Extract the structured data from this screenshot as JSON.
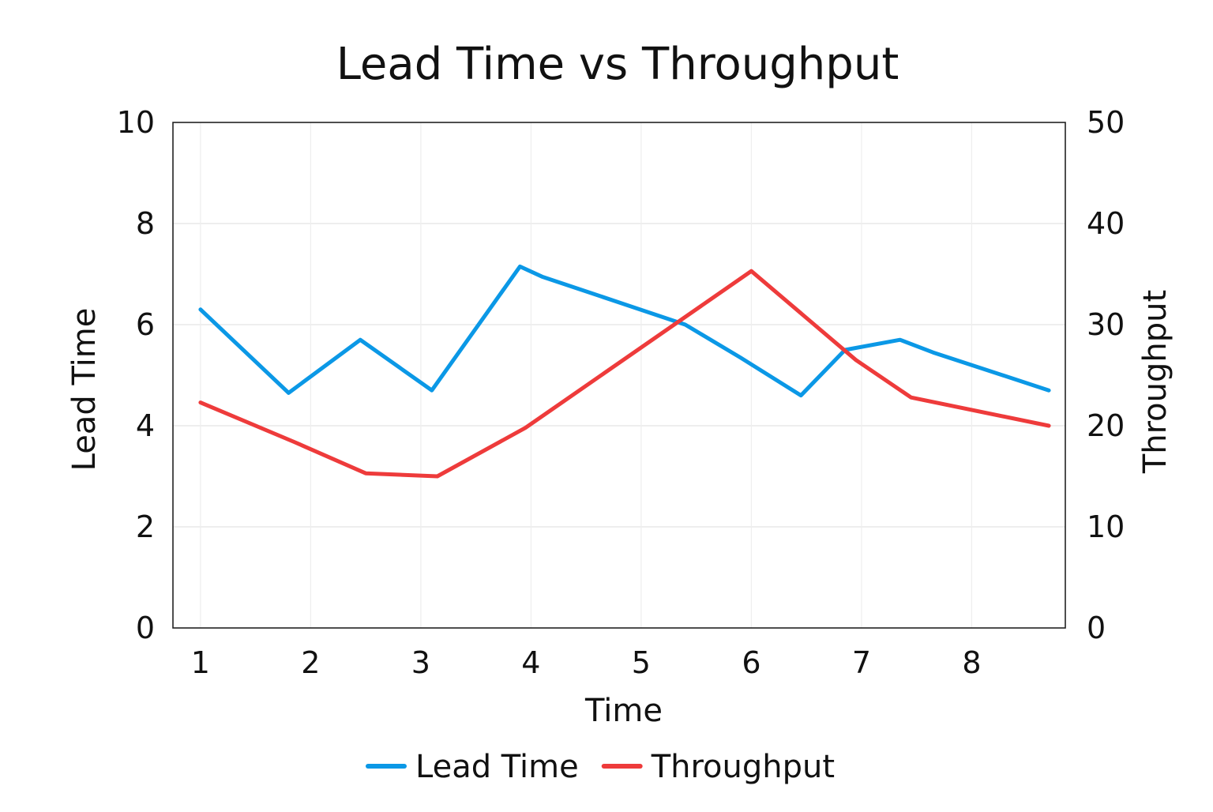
{
  "chart_data": {
    "type": "line",
    "title": "Lead Time vs Throughput",
    "xlabel": "Time",
    "ylabel_left": "Lead Time",
    "ylabel_right": "Throughput",
    "xlim": [
      0.75,
      8.85
    ],
    "ylim_left": [
      0,
      10
    ],
    "ylim_right": [
      0,
      50
    ],
    "x_ticks": [
      1,
      2,
      3,
      4,
      5,
      6,
      7,
      8
    ],
    "x_tick_labels": [
      "1",
      "2",
      "3",
      "4",
      "5",
      "6",
      "7",
      "8"
    ],
    "y_ticks_left": [
      0,
      2,
      4,
      6,
      8,
      10
    ],
    "y_tick_labels_left": [
      "0",
      "2",
      "4",
      "6",
      "8",
      "10"
    ],
    "y_ticks_right": [
      0,
      10,
      20,
      30,
      40,
      50
    ],
    "y_tick_labels_right": [
      "0",
      "10",
      "20",
      "30",
      "40",
      "50"
    ],
    "grid": true,
    "legend_position": "bottom-center",
    "series": [
      {
        "name": "Lead Time",
        "axis": "left",
        "color": "#0b98e6",
        "points": [
          [
            1.0,
            6.3
          ],
          [
            1.8,
            4.65
          ],
          [
            2.45,
            5.7
          ],
          [
            3.1,
            4.7
          ],
          [
            3.9,
            7.15
          ],
          [
            4.1,
            6.95
          ],
          [
            5.4,
            6.0
          ],
          [
            5.9,
            5.35
          ],
          [
            6.45,
            4.6
          ],
          [
            6.85,
            5.5
          ],
          [
            7.35,
            5.7
          ],
          [
            7.65,
            5.45
          ],
          [
            8.7,
            4.7
          ]
        ]
      },
      {
        "name": "Throughput",
        "axis": "right",
        "color": "#ee3b3b",
        "points": [
          [
            1.0,
            22.3
          ],
          [
            1.85,
            18.4
          ],
          [
            2.5,
            15.3
          ],
          [
            3.15,
            15.0
          ],
          [
            3.95,
            19.8
          ],
          [
            6.0,
            35.3
          ],
          [
            6.95,
            26.5
          ],
          [
            7.45,
            22.8
          ],
          [
            8.7,
            20.0
          ]
        ]
      }
    ]
  }
}
